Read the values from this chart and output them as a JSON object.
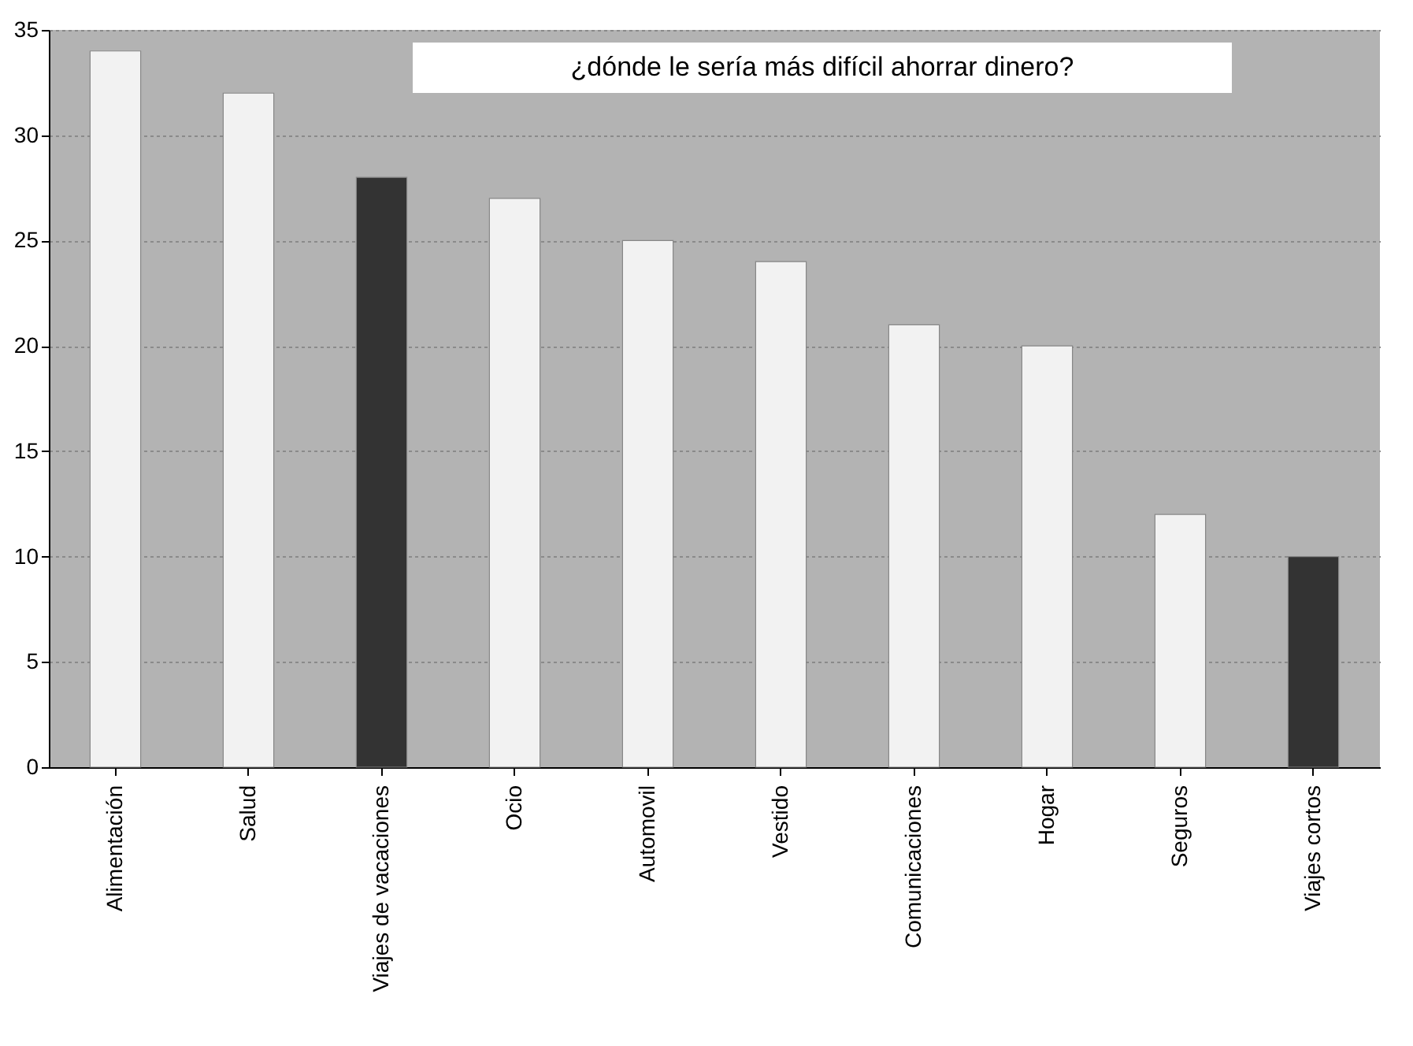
{
  "chart_data": {
    "type": "bar",
    "title": "¿dónde le sería más difícil ahorrar dinero?",
    "categories": [
      "Alimentación",
      "Salud",
      "Viajes de vacaciones",
      "Ocio",
      "Automovil",
      "Vestido",
      "Comunicaciones",
      "Hogar",
      "Seguros",
      "Viajes cortos"
    ],
    "values": [
      34,
      32,
      28,
      27,
      25,
      24,
      21,
      20,
      12,
      10
    ],
    "colors": [
      "#f2f2f2",
      "#f2f2f2",
      "#333333",
      "#f2f2f2",
      "#f2f2f2",
      "#f2f2f2",
      "#f2f2f2",
      "#f2f2f2",
      "#f2f2f2",
      "#333333"
    ],
    "ylim": [
      0,
      35
    ],
    "yticks": [
      0,
      5,
      10,
      15,
      20,
      25,
      30,
      35
    ],
    "grid": "y"
  }
}
